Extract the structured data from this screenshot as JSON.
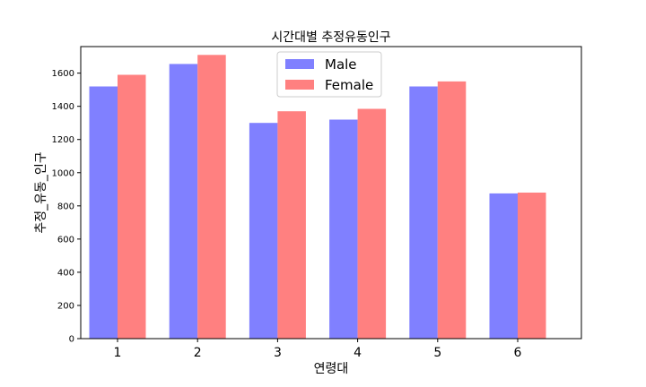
{
  "chart_data": {
    "type": "bar",
    "title": "시간대별 추정유동인구",
    "xlabel": "연령대",
    "ylabel": "추정_유동_인구",
    "categories": [
      "1",
      "2",
      "3",
      "4",
      "5",
      "6"
    ],
    "series": [
      {
        "name": "Male",
        "color": "#8080ff",
        "values": [
          1520,
          1655,
          1300,
          1320,
          1520,
          875
        ]
      },
      {
        "name": "Female",
        "color": "#ff8080",
        "values": [
          1590,
          1710,
          1370,
          1385,
          1550,
          880
        ]
      }
    ],
    "ylim": [
      0,
      1760
    ],
    "yticks": [
      0,
      200,
      400,
      600,
      800,
      1000,
      1200,
      1400,
      1600
    ],
    "legend_position": "top-center",
    "grid": false
  }
}
